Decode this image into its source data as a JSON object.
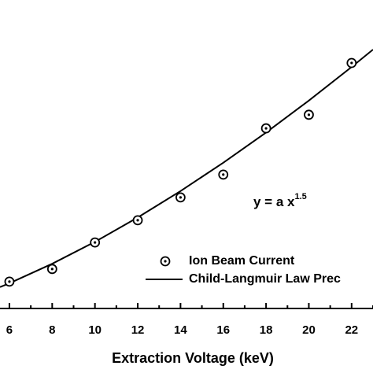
{
  "chart_data": {
    "type": "scatter",
    "x_label": "Extraction Voltage (keV)",
    "annotation": {
      "text": "y = a x",
      "superscript": "1.5"
    },
    "xlim": [
      5.56,
      23.0
    ],
    "ylim": [
      0,
      100
    ],
    "xticks": [
      6,
      8,
      10,
      12,
      14,
      16,
      18,
      20,
      22
    ],
    "xminorticks": [
      7,
      9,
      11,
      13,
      15,
      17,
      19,
      21,
      23
    ],
    "series": [
      {
        "name": "Ion Beam Current",
        "kind": "marker",
        "color": "#000000",
        "x": [
          6,
          8,
          10,
          12,
          14,
          16,
          18,
          20,
          22
        ],
        "values": [
          8.7,
          12.8,
          21.4,
          28.6,
          36.0,
          43.4,
          58.4,
          62.8,
          79.6
        ]
      },
      {
        "name": "Child-Langmuir Law Prec",
        "kind": "line",
        "color": "#000000",
        "x": [
          5.56,
          6,
          8,
          10,
          12,
          14,
          16,
          18,
          20,
          22,
          23
        ],
        "values": [
          6.94,
          8.2,
          14.48,
          21.6,
          29.48,
          38.05,
          47.25,
          57.04,
          67.4,
          78.29,
          83.92
        ]
      }
    ]
  }
}
